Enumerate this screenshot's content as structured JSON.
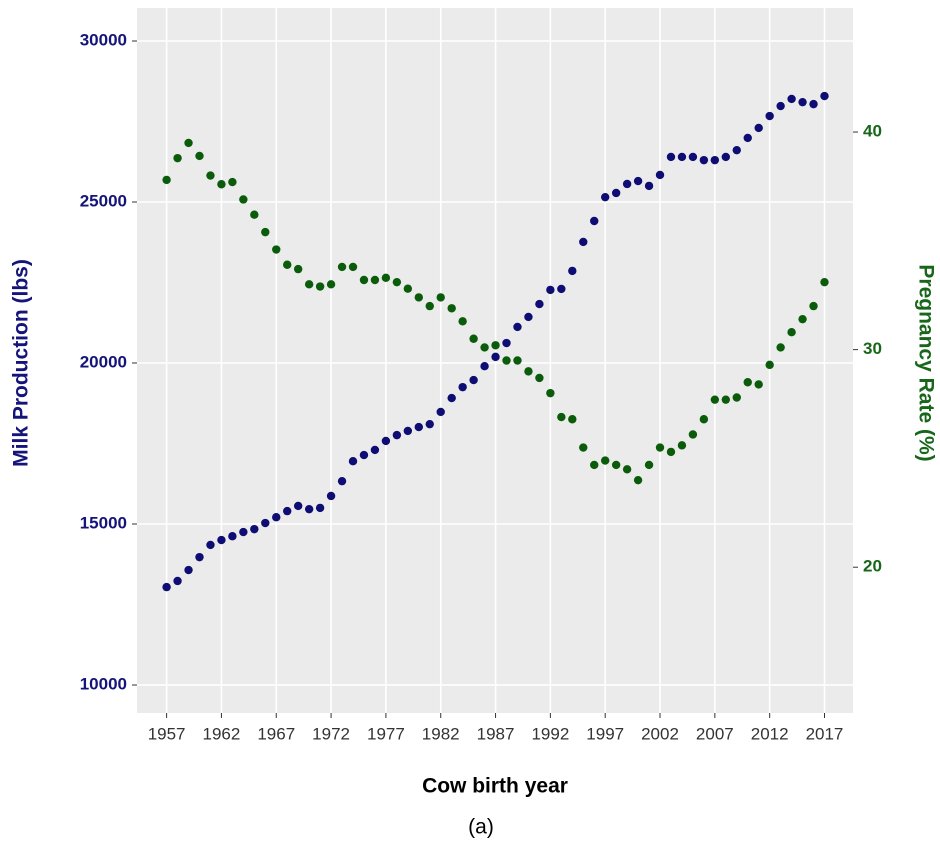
{
  "chart_data": {
    "type": "scatter",
    "x_label": "Cow birth year",
    "y_label": "Milk Production (lbs)",
    "y2_label": "Pregnancy Rate (%)",
    "caption": "(a)",
    "x": [
      1957,
      1958,
      1959,
      1960,
      1961,
      1962,
      1963,
      1964,
      1965,
      1966,
      1967,
      1968,
      1969,
      1970,
      1971,
      1972,
      1973,
      1974,
      1975,
      1976,
      1977,
      1978,
      1979,
      1980,
      1981,
      1982,
      1983,
      1984,
      1985,
      1986,
      1987,
      1988,
      1989,
      1990,
      1991,
      1992,
      1993,
      1994,
      1995,
      1996,
      1997,
      1998,
      1999,
      2000,
      2001,
      2002,
      2003,
      2004,
      2005,
      2006,
      2007,
      2008,
      2009,
      2010,
      2011,
      2012,
      2013,
      2014,
      2015,
      2016,
      2017
    ],
    "series": [
      {
        "color": "#0d0d73",
        "axis": "y",
        "values": [
          13040,
          13230,
          13570,
          13970,
          14350,
          14500,
          14620,
          14750,
          14840,
          15030,
          15210,
          15400,
          15560,
          15460,
          15500,
          15870,
          16330,
          16950,
          17140,
          17300,
          17580,
          17760,
          17890,
          18010,
          18100,
          18480,
          18910,
          19250,
          19470,
          19900,
          20190,
          20620,
          21120,
          21430,
          21830,
          22270,
          22300,
          22860,
          23760,
          24410,
          25150,
          25280,
          25560,
          25650,
          25500,
          25840,
          26400,
          26400,
          26400,
          26300,
          26300,
          26400,
          26610,
          26990,
          27300,
          27670,
          27980,
          28200,
          28100,
          28040,
          28290
        ]
      },
      {
        "color": "#0a5c0a",
        "axis": "y2",
        "values": [
          37.8,
          38.8,
          39.5,
          38.9,
          38.0,
          37.6,
          37.7,
          36.9,
          36.2,
          35.4,
          34.6,
          33.9,
          33.7,
          33.0,
          32.9,
          33.0,
          33.8,
          33.8,
          33.2,
          33.2,
          33.3,
          33.1,
          32.8,
          32.4,
          32.0,
          32.4,
          31.9,
          31.3,
          30.5,
          30.1,
          30.2,
          29.5,
          29.5,
          29.0,
          28.7,
          28.0,
          26.9,
          26.8,
          25.5,
          24.7,
          24.9,
          24.7,
          24.5,
          24.0,
          24.7,
          25.5,
          25.3,
          25.6,
          26.1,
          26.8,
          27.7,
          27.7,
          27.8,
          28.5,
          28.4,
          29.3,
          30.1,
          30.8,
          31.4,
          32.0,
          33.1
        ]
      }
    ],
    "xlim": [
      1954.3,
      2019.6
    ],
    "xticks": [
      1957,
      1962,
      1967,
      1972,
      1977,
      1982,
      1987,
      1992,
      1997,
      2002,
      2007,
      2012,
      2017
    ],
    "ylim": [
      9130,
      31025
    ],
    "yticks": [
      10000,
      15000,
      20000,
      25000,
      30000
    ],
    "y2lim": [
      13.3,
      45.7
    ],
    "y2ticks": [
      20,
      30,
      40
    ],
    "y_color": "#14147a",
    "y2_color": "#17661a",
    "grid": true
  }
}
